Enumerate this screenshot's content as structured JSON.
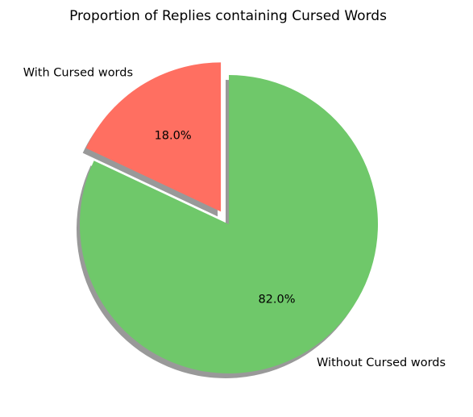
{
  "chart_data": {
    "type": "pie",
    "title": "Proportion of Replies containing Cursed Words",
    "slices": [
      {
        "label": "With Cursed words",
        "value": 18.0,
        "pct_label": "18.0%",
        "color": "#ff6f61",
        "explode": 0.1
      },
      {
        "label": "Without Cursed words",
        "value": 82.0,
        "pct_label": "82.0%",
        "color": "#6fc86a",
        "explode": 0
      }
    ],
    "start_angle": 90,
    "direction": "counterclockwise",
    "shadow": true
  }
}
